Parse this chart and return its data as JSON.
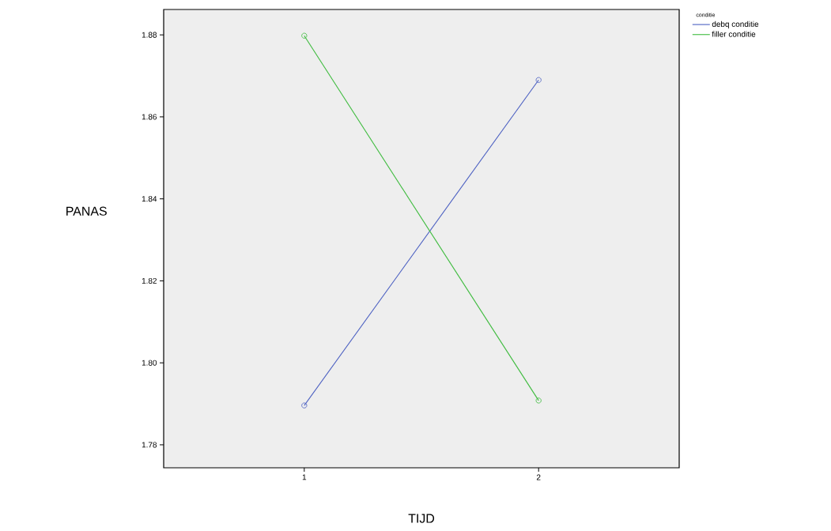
{
  "chart_data": {
    "type": "line",
    "xlabel": "TIJD",
    "ylabel": "PANAS",
    "legend_title": "conditie",
    "categories": [
      "1",
      "2"
    ],
    "series": [
      {
        "name": "debq conditie",
        "color": "#4a5fc1",
        "values": [
          1.7896,
          1.869
        ]
      },
      {
        "name": "filler conditie",
        "color": "#3dbb3d",
        "values": [
          1.8798,
          1.7908
        ]
      }
    ],
    "ylim": [
      1.7744,
      1.8862
    ],
    "yticks": [
      1.78,
      {
        "value": 1.8,
        "label": "1.80"
      },
      1.82,
      1.84,
      1.86,
      1.88
    ],
    "grid": false,
    "legend": "top right",
    "marker": "circle",
    "line_style": "solid"
  }
}
